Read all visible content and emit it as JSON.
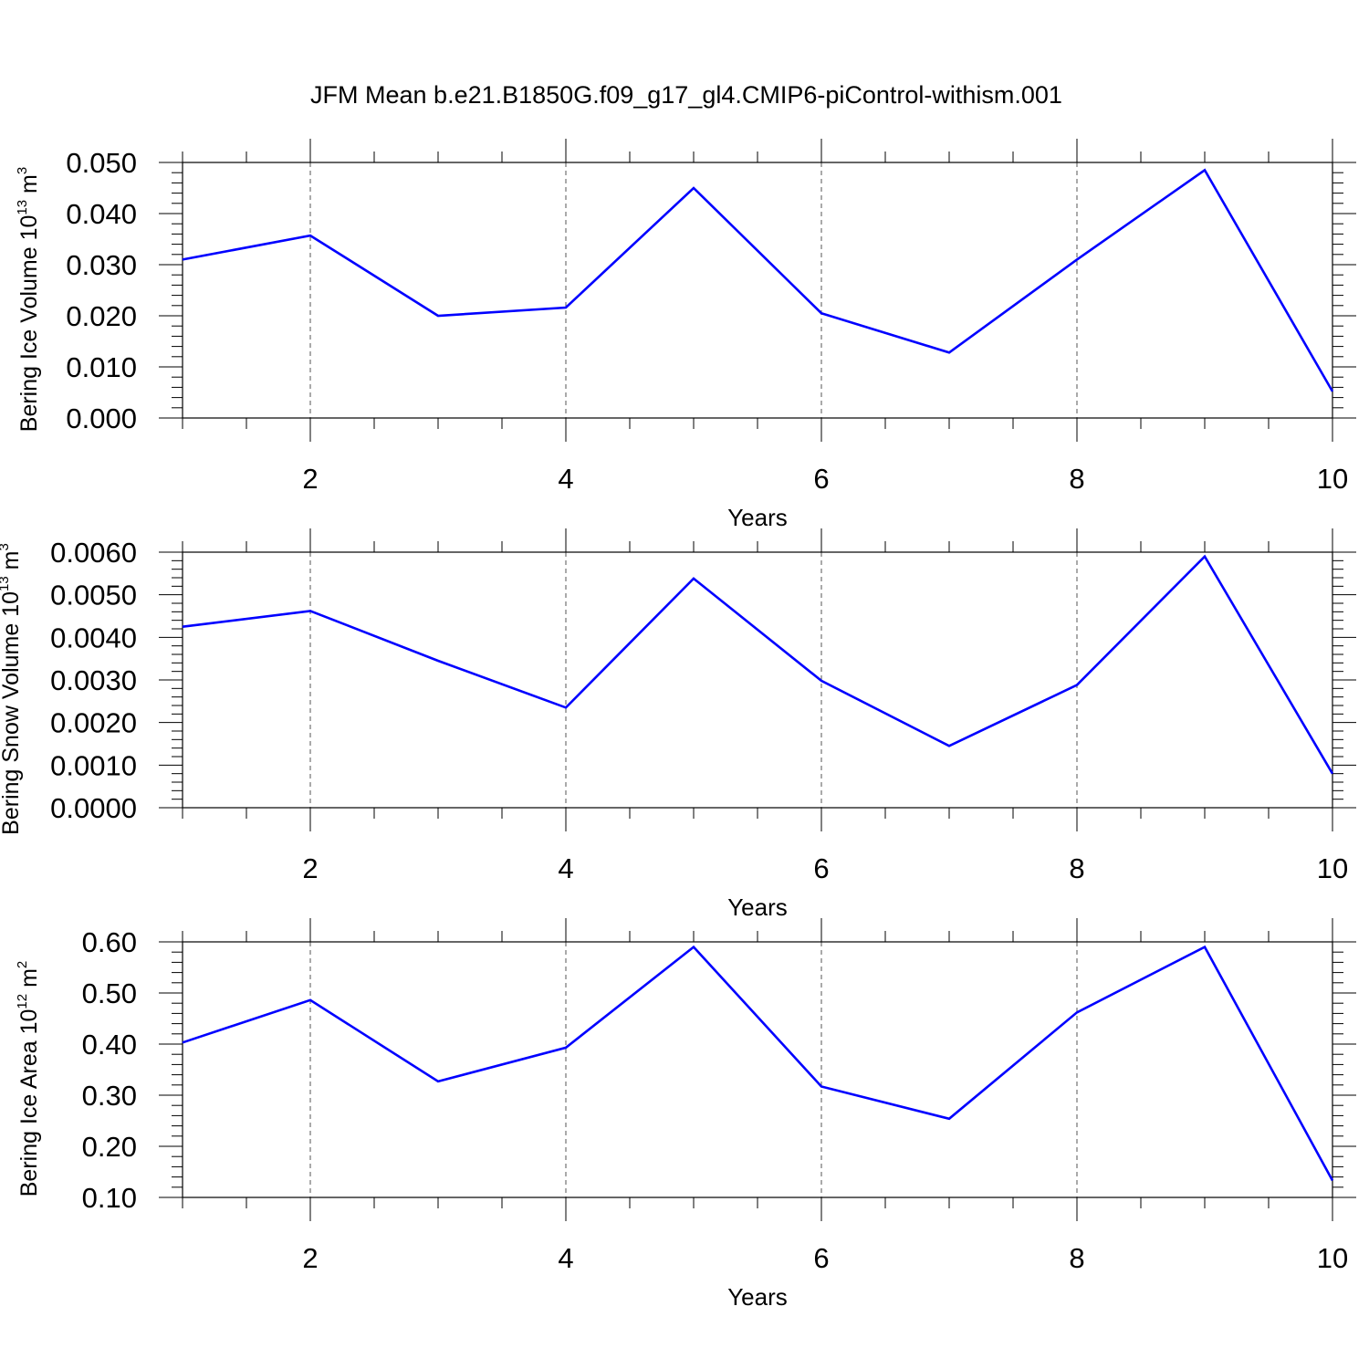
{
  "title": "JFM Mean b.e21.B1850G.f09_g17_gl4.CMIP6-piControl-withism.001",
  "colors": {
    "series": "#0000ff",
    "axis": "#000000",
    "grid": "#555555"
  },
  "chart_data": [
    {
      "type": "line",
      "xlabel": "Years",
      "ylabel": {
        "prefix": "Bering Ice Volume 10",
        "exp": "13",
        "unit": " m",
        "unit_exp": "3"
      },
      "x": [
        1,
        2,
        3,
        4,
        5,
        6,
        7,
        8,
        9,
        10
      ],
      "values": [
        0.031,
        0.0357,
        0.02,
        0.0216,
        0.045,
        0.0205,
        0.0128,
        0.031,
        0.0485,
        0.0052
      ],
      "xlim": [
        1,
        10
      ],
      "ylim": [
        0.0,
        0.05
      ],
      "xticks": [
        "2",
        "4",
        "6",
        "8",
        "10"
      ],
      "yticks": [
        "0.000",
        "0.010",
        "0.020",
        "0.030",
        "0.040",
        "0.050"
      ],
      "grid": "vertical dashed at major x ticks"
    },
    {
      "type": "line",
      "xlabel": "Years",
      "ylabel": {
        "prefix": "Bering Snow Volume 10",
        "exp": "13",
        "unit": " m",
        "unit_exp": "3"
      },
      "x": [
        1,
        2,
        3,
        4,
        5,
        6,
        7,
        8,
        9,
        10
      ],
      "values": [
        0.00425,
        0.00462,
        0.00345,
        0.00235,
        0.00538,
        0.00298,
        0.00145,
        0.00288,
        0.0059,
        0.0008
      ],
      "xlim": [
        1,
        10
      ],
      "ylim": [
        0.0,
        0.006
      ],
      "xticks": [
        "2",
        "4",
        "6",
        "8",
        "10"
      ],
      "yticks": [
        "0.0000",
        "0.0010",
        "0.0020",
        "0.0030",
        "0.0040",
        "0.0050",
        "0.0060"
      ],
      "grid": "vertical dashed at major x ticks"
    },
    {
      "type": "line",
      "xlabel": "Years",
      "ylabel": {
        "prefix": "Bering Ice Area 10",
        "exp": "12",
        "unit": " m",
        "unit_exp": "2"
      },
      "x": [
        1,
        2,
        3,
        4,
        5,
        6,
        7,
        8,
        9,
        10
      ],
      "values": [
        0.403,
        0.486,
        0.327,
        0.393,
        0.59,
        0.317,
        0.254,
        0.462,
        0.59,
        0.133
      ],
      "xlim": [
        1,
        10
      ],
      "ylim": [
        0.1,
        0.6
      ],
      "xticks": [
        "2",
        "4",
        "6",
        "8",
        "10"
      ],
      "yticks": [
        "0.10",
        "0.20",
        "0.30",
        "0.40",
        "0.50",
        "0.60"
      ],
      "grid": "vertical dashed at major x ticks"
    }
  ]
}
